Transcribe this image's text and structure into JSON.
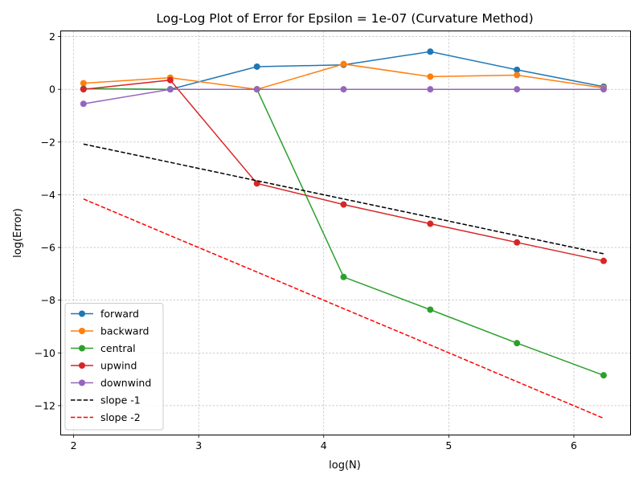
{
  "chart_data": {
    "type": "line",
    "title": "Log-Log Plot of Error for Epsilon = 1e-07 (Curvature Method)",
    "xlabel": "log(N)",
    "ylabel": "log(Error)",
    "xlim": [
      1.9,
      6.45
    ],
    "ylim": [
      -13.1,
      2.2
    ],
    "xticks": [
      2,
      3,
      4,
      5,
      6
    ],
    "yticks": [
      -12,
      -10,
      -8,
      -6,
      -4,
      -2,
      0,
      2
    ],
    "grid": true,
    "legend_position": "lower-left",
    "x": [
      2.079,
      2.773,
      3.466,
      4.159,
      4.852,
      5.545,
      6.238
    ],
    "series": [
      {
        "name": "forward",
        "color": "#1f77b4",
        "style": "solid",
        "markers": true,
        "values": [
          0.02,
          0.0,
          0.86,
          0.93,
          1.43,
          0.74,
          0.1
        ]
      },
      {
        "name": "backward",
        "color": "#ff7f0e",
        "style": "solid",
        "markers": true,
        "values": [
          0.23,
          0.44,
          0.0,
          0.96,
          0.48,
          0.54,
          0.05
        ]
      },
      {
        "name": "central",
        "color": "#2ca02c",
        "style": "solid",
        "markers": true,
        "values": [
          0.02,
          0.0,
          0.0,
          -7.12,
          -8.36,
          -9.63,
          -10.85
        ]
      },
      {
        "name": "upwind",
        "color": "#d62728",
        "style": "solid",
        "markers": true,
        "values": [
          0.0,
          0.35,
          -3.57,
          -4.37,
          -5.1,
          -5.81,
          -6.51
        ]
      },
      {
        "name": "downwind",
        "color": "#9467bd",
        "style": "solid",
        "markers": true,
        "values": [
          -0.55,
          0.0,
          0.0,
          0.0,
          0.0,
          0.0,
          0.0
        ]
      },
      {
        "name": "slope -1",
        "color": "#000000",
        "style": "dashed",
        "markers": false,
        "values": [
          -2.08,
          -2.77,
          -3.47,
          -4.16,
          -4.85,
          -5.55,
          -6.24
        ]
      },
      {
        "name": "slope -2",
        "color": "#ff0000",
        "style": "dashed",
        "markers": false,
        "values": [
          -4.16,
          -5.55,
          -6.93,
          -8.32,
          -9.7,
          -11.09,
          -12.48
        ]
      }
    ]
  }
}
